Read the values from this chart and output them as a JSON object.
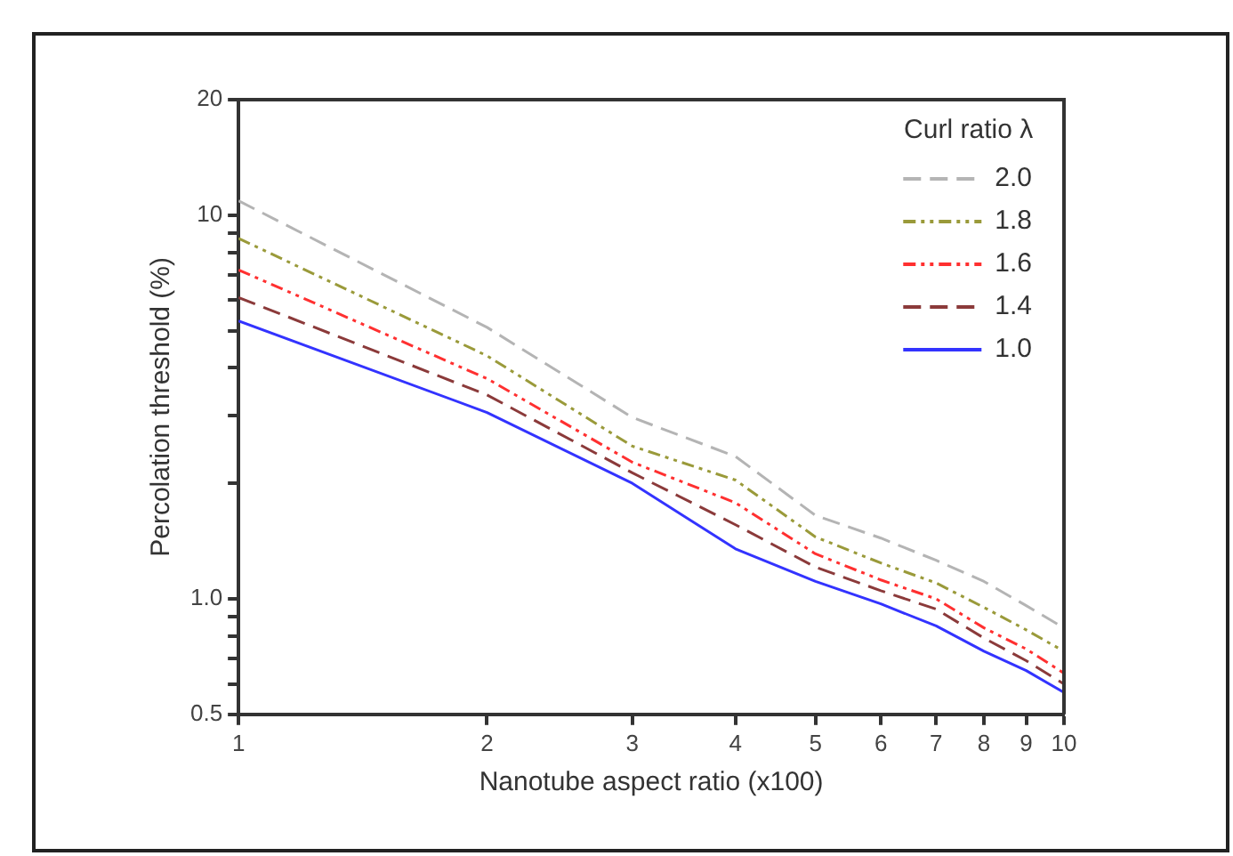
{
  "chart_data": {
    "type": "line",
    "xlabel": "Nanotube aspect ratio (x100)",
    "ylabel": "Percolation threshold (%)",
    "legend_title": "Curl ratio λ",
    "legend": "top right",
    "log": "xy",
    "grid": false,
    "marker": "none",
    "x": [
      1,
      2,
      3,
      4,
      5,
      6,
      7,
      8,
      9,
      10
    ],
    "xlim": [
      1,
      10
    ],
    "xticks": [
      1,
      2,
      3,
      4,
      5,
      6,
      7,
      8,
      9,
      10
    ],
    "ylim": [
      0.5,
      20
    ],
    "yticks": [
      {
        "value": 0.5,
        "label": "0.5"
      },
      {
        "value": 0.6,
        "label": null
      },
      {
        "value": 0.7,
        "label": null
      },
      {
        "value": 0.8,
        "label": null
      },
      {
        "value": 0.9,
        "label": null
      },
      {
        "value": 1,
        "label": "1.0"
      },
      {
        "value": 2,
        "label": null
      },
      {
        "value": 3,
        "label": null
      },
      {
        "value": 4,
        "label": null
      },
      {
        "value": 5,
        "label": null
      },
      {
        "value": 6,
        "label": null
      },
      {
        "value": 7,
        "label": null
      },
      {
        "value": 8,
        "label": null
      },
      {
        "value": 9,
        "label": null
      },
      10,
      20
    ],
    "series": [
      {
        "name": "2.0",
        "color": "#b4b4b4",
        "line_style": "dashed",
        "values": [
          10.9,
          5.1,
          2.97,
          2.35,
          1.65,
          1.44,
          1.26,
          1.11,
          0.96,
          0.84
        ]
      },
      {
        "name": "1.8",
        "color": "#9a9a3a",
        "line_style": "dotted",
        "values": [
          8.7,
          4.3,
          2.5,
          2.04,
          1.45,
          1.24,
          1.1,
          0.95,
          0.83,
          0.73
        ]
      },
      {
        "name": "1.6",
        "color": "#ff3030",
        "line_style": "dotted",
        "values": [
          7.2,
          3.75,
          2.27,
          1.78,
          1.31,
          1.12,
          1.0,
          0.84,
          0.74,
          0.64
        ]
      },
      {
        "name": "1.4",
        "color": "#8b3a3a",
        "line_style": "dashed",
        "values": [
          6.1,
          3.4,
          2.13,
          1.56,
          1.21,
          1.05,
          0.94,
          0.79,
          0.69,
          0.6
        ]
      },
      {
        "name": "1.0",
        "color": "#3333ff",
        "line_style": "solid",
        "values": [
          5.3,
          3.06,
          2.0,
          1.35,
          1.11,
          0.97,
          0.85,
          0.73,
          0.65,
          0.57
        ]
      }
    ]
  }
}
